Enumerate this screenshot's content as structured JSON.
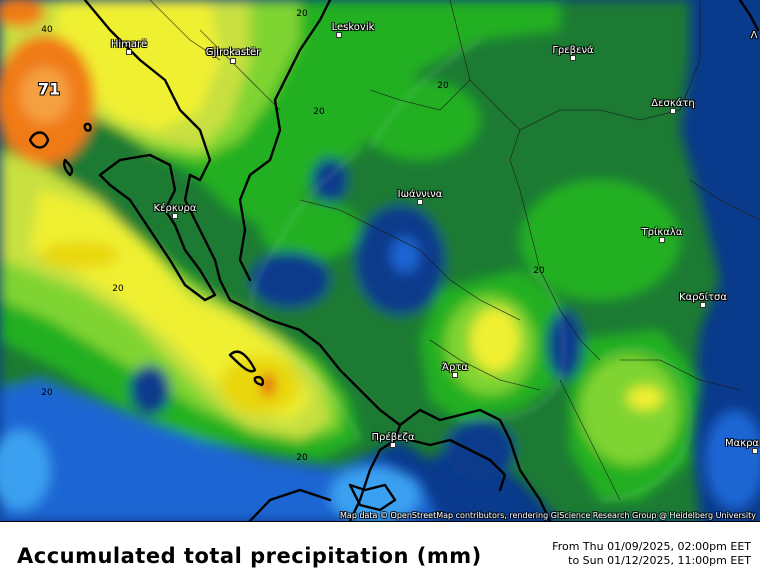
{
  "map": {
    "cities": [
      {
        "id": "himare",
        "name": "Himarë"
      },
      {
        "id": "gjirokaster",
        "name": "Gjirokastër"
      },
      {
        "id": "leskovik",
        "name": "Leskovik"
      },
      {
        "id": "grevena",
        "name": "Γρεβενά"
      },
      {
        "id": "deskati",
        "name": "Δεσκάτη"
      },
      {
        "id": "kerkyra",
        "name": "Κέρκυρα"
      },
      {
        "id": "ioannina",
        "name": "Ιωάννινα"
      },
      {
        "id": "trikala",
        "name": "Τρίκαλα"
      },
      {
        "id": "karditsa",
        "name": "Καρδίτσα"
      },
      {
        "id": "arta",
        "name": "Άρτα"
      },
      {
        "id": "preveza",
        "name": "Πρέβεζα"
      },
      {
        "id": "makra",
        "name": "Μακρα"
      },
      {
        "id": "edge-top-right",
        "name": "Λ"
      }
    ],
    "contour_labels": [
      "40",
      "20",
      "20",
      "20",
      "20",
      "20",
      "20",
      "20"
    ],
    "max_value": "71",
    "colors": {
      "dark_blue": "#0a3a8c",
      "blue": "#1a66d4",
      "light_blue": "#3aa0f0",
      "dark_green": "#1e7a32",
      "green": "#22b022",
      "light_green": "#7fd432",
      "yellow_green": "#c8e040",
      "yellow": "#f0f032",
      "pale_yellow": "#e8d810",
      "orange": "#f07a18",
      "red_orange": "#e85010"
    }
  },
  "attribution": "Map data © OpenStreetMap contributors, rendering GIScience Research Group @ Heidelberg University",
  "footer": {
    "title": "Accumulated total precipitation (mm)",
    "period_from": "From Thu 01/09/2025, 02:00pm EET",
    "period_to": "to Sun 01/12/2025, 11:00pm EET"
  }
}
